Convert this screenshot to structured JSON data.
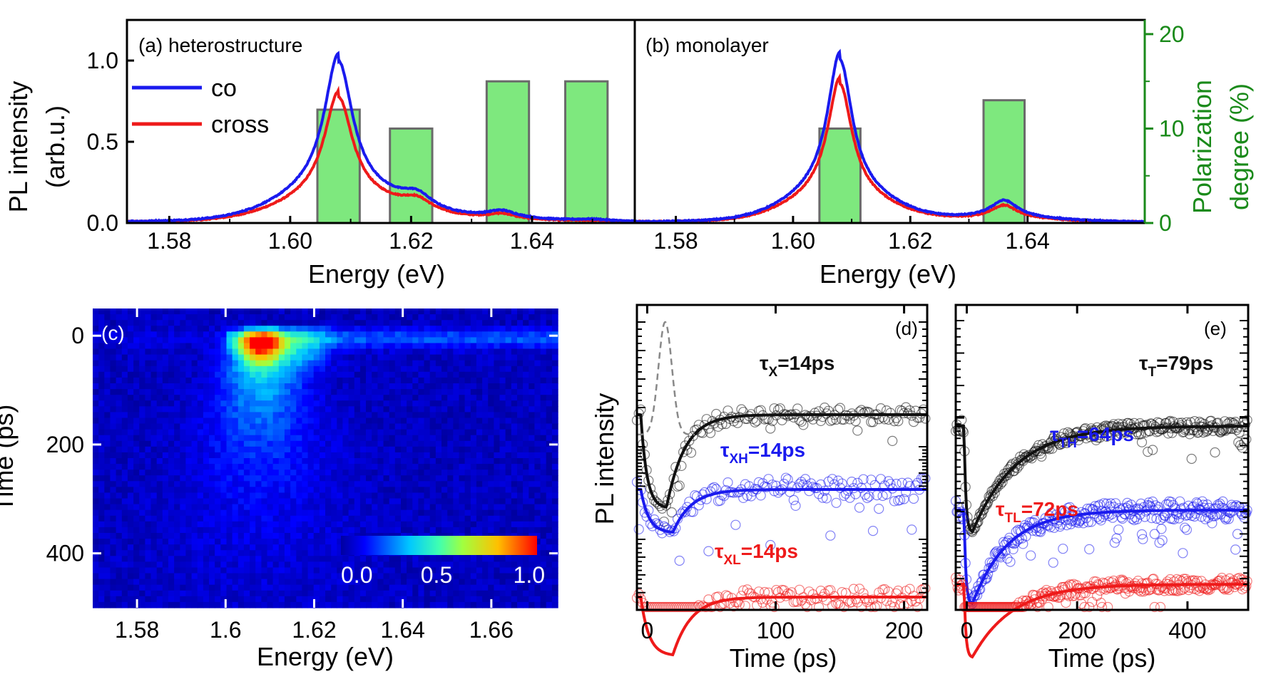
{
  "colors": {
    "co": "#1a1aee",
    "cross": "#ee1a1a",
    "bar_fill": "#7ee87e",
    "bar_edge": "#6a6a6a",
    "green_axis": "#1a8a1a",
    "fit_black": "#111111",
    "fit_blue": "#1a1aee",
    "fit_red": "#ee1a1a",
    "marker_gray": "#888888"
  },
  "chart_data": [
    {
      "id": "a",
      "type": "line",
      "title": "(a) heterostructure",
      "xlabel": "Energy (eV)",
      "ylabel_line1": "PL intensity",
      "ylabel_line2": "(arb.u.)",
      "xlim": [
        1.573,
        1.657
      ],
      "ylim": [
        0,
        1.25
      ],
      "xticks": [
        1.58,
        1.6,
        1.62,
        1.64
      ],
      "xtick_labels": [
        "1.58",
        "1.60",
        "1.62",
        "1.64"
      ],
      "yticks": [
        0.0,
        0.5,
        1.0
      ],
      "ytick_labels": [
        "0.0",
        "0.5",
        "1.0"
      ],
      "legend": [
        {
          "name": "co",
          "color": "#1a1aee"
        },
        {
          "name": "cross",
          "color": "#ee1a1a"
        }
      ],
      "peaks": {
        "co": [
          [
            1.608,
            0.98,
            0.0028,
            0.008
          ],
          [
            1.621,
            0.1,
            0.003,
            0
          ],
          [
            1.635,
            0.055,
            0.003,
            0
          ],
          [
            1.65,
            0.012,
            0.003,
            0
          ]
        ],
        "cross": [
          [
            1.608,
            0.76,
            0.0028,
            0.007
          ],
          [
            1.621,
            0.085,
            0.003,
            0
          ],
          [
            1.635,
            0.04,
            0.003,
            0
          ],
          [
            1.65,
            0.006,
            0.003,
            0
          ]
        ]
      },
      "pol_bars": [
        {
          "x0": 1.6045,
          "x1": 1.6115,
          "value": 12
        },
        {
          "x0": 1.6165,
          "x1": 1.6235,
          "value": 10
        },
        {
          "x0": 1.6325,
          "x1": 1.6395,
          "value": 15
        },
        {
          "x0": 1.6455,
          "x1": 1.6525,
          "value": 15
        }
      ]
    },
    {
      "id": "b",
      "type": "line",
      "title": "(b) monolayer",
      "xlabel": "Energy (eV)",
      "xlim": [
        1.573,
        1.66
      ],
      "ylim": [
        0,
        1.25
      ],
      "xticks": [
        1.58,
        1.6,
        1.62,
        1.64
      ],
      "xtick_labels": [
        "1.58",
        "1.60",
        "1.62",
        "1.64"
      ],
      "y2label_line1": "Polarization",
      "y2label_line2": "degree (%)",
      "y2lim": [
        0,
        21.5
      ],
      "y2ticks": [
        0,
        10,
        20
      ],
      "y2tick_labels": [
        "0",
        "10",
        "20"
      ],
      "peaks": {
        "co": [
          [
            1.608,
            1.0,
            0.0025,
            0.006
          ],
          [
            1.636,
            0.13,
            0.0028,
            0
          ]
        ],
        "cross": [
          [
            1.608,
            0.85,
            0.0025,
            0.005
          ],
          [
            1.636,
            0.1,
            0.0028,
            0
          ]
        ]
      },
      "pol_bars": [
        {
          "x0": 1.6045,
          "x1": 1.6115,
          "value": 10
        },
        {
          "x0": 1.6325,
          "x1": 1.6395,
          "value": 13
        }
      ]
    },
    {
      "id": "c",
      "type": "heatmap",
      "title": "(c)",
      "xlabel": "Energy (eV)",
      "ylabel": "Time (ps)",
      "xlim": [
        1.57,
        1.675
      ],
      "ylim": [
        -50,
        500
      ],
      "xticks": [
        1.58,
        1.6,
        1.62,
        1.64,
        1.66
      ],
      "xtick_labels": [
        "1.58",
        "1.6",
        "1.62",
        "1.64",
        "1.66"
      ],
      "yticks": [
        0,
        200,
        400
      ],
      "ytick_labels": [
        "0",
        "200",
        "400"
      ],
      "colorbar_labels": [
        "0.0",
        "0.5",
        "1.0"
      ],
      "hotspot": {
        "energy": 1.608,
        "time": 20,
        "value": 1.0
      }
    },
    {
      "id": "d",
      "type": "scatter",
      "title": "(d)",
      "xlabel": "Time (ps)",
      "ylabel": "PL intensity",
      "xlim": [
        -8,
        218
      ],
      "xticks": [
        0,
        100,
        200
      ],
      "xtick_labels": [
        "0",
        "100",
        "200"
      ],
      "series": [
        {
          "name": "τ",
          "sub": "X",
          "label_value": "=14ps",
          "tau": 14,
          "color": "#111111",
          "peak_t": 15
        },
        {
          "name": "τ",
          "sub": "XH",
          "label_value": "=14ps",
          "tau": 14,
          "color": "#1a1aee",
          "peak_t": 20
        },
        {
          "name": "τ",
          "sub": "XL",
          "label_value": "=14ps",
          "tau": 14,
          "color": "#ee1a1a",
          "peak_t": 20
        }
      ]
    },
    {
      "id": "e",
      "type": "scatter",
      "title": "(e)",
      "xlabel": "Time (ps)",
      "xlim": [
        -20,
        510
      ],
      "xticks": [
        0,
        200,
        400
      ],
      "xtick_labels": [
        "0",
        "200",
        "400"
      ],
      "series": [
        {
          "name": "τ",
          "sub": "T",
          "label_value": "=79ps",
          "tau": 79,
          "color": "#111111",
          "peak_t": 10
        },
        {
          "name": "τ",
          "sub": "TH",
          "label_value": "=64ps",
          "tau": 64,
          "color": "#1a1aee",
          "peak_t": 10
        },
        {
          "name": "τ",
          "sub": "TL",
          "label_value": "=72ps",
          "tau": 72,
          "color": "#ee1a1a",
          "peak_t": 10
        }
      ]
    }
  ]
}
